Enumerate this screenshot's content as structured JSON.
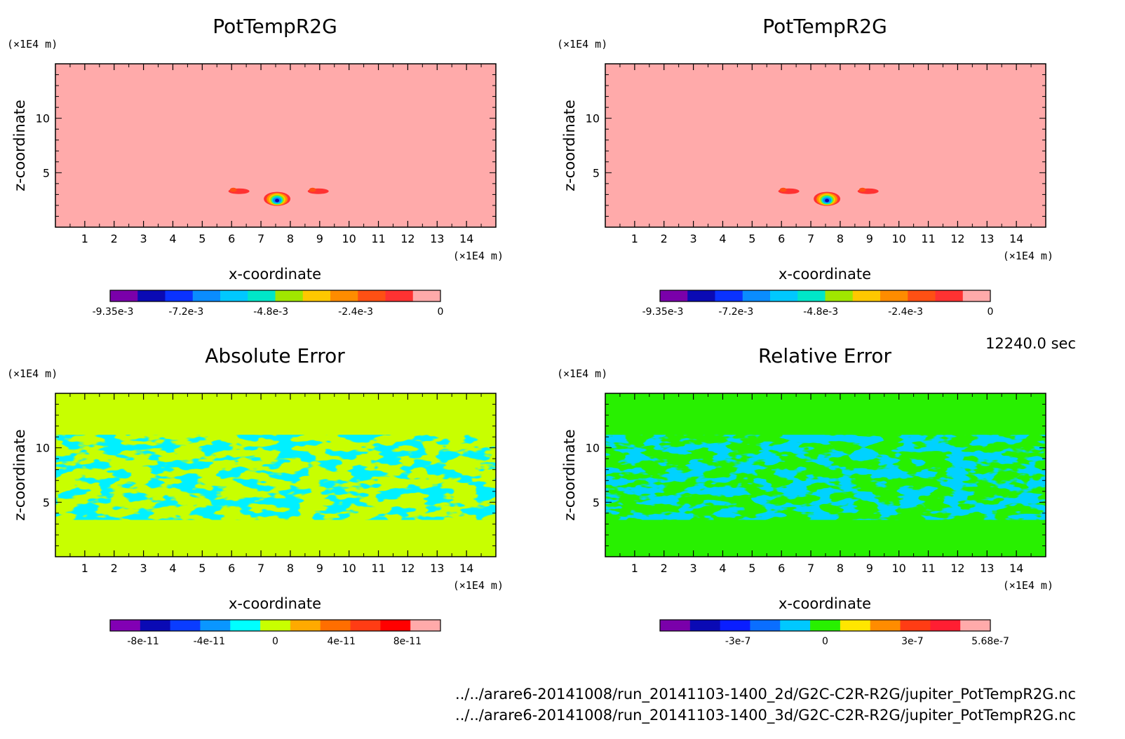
{
  "time_label": "12240.0 sec",
  "file_paths": [
    "../../arare6-20141008/run_20141103-1400_2d/G2C-C2R-R2G/jupiter_PotTempR2G.nc",
    "../../arare6-20141008/run_20141103-1400_3d/G2C-C2R-R2G/jupiter_PotTempR2G.nc"
  ],
  "chart_data": [
    {
      "type": "heatmap",
      "title": "PotTempR2G",
      "xlabel": "x-coordinate",
      "ylabel": "z-coordinate",
      "x_unit": "(×1E4 m)",
      "y_unit": "(×1E4 m)",
      "xlim": [
        0,
        15
      ],
      "ylim": [
        0,
        15
      ],
      "x_ticks": [
        1,
        2,
        3,
        4,
        5,
        6,
        7,
        8,
        9,
        10,
        11,
        12,
        13,
        14
      ],
      "y_ticks": [
        5,
        10
      ],
      "background_value": 0,
      "features": [
        {
          "kind": "anomaly",
          "x": 7.55,
          "z": 2.6,
          "min_value": -0.00935
        },
        {
          "kind": "patch",
          "x": 6.25,
          "z": 3.3,
          "value": -0.0024
        },
        {
          "kind": "patch",
          "x": 8.95,
          "z": 3.3,
          "value": -0.0024
        }
      ],
      "colorbar": {
        "colors": [
          "#7a00aa",
          "#0a0ab4",
          "#0a32ff",
          "#0a8cff",
          "#00c8ff",
          "#00e6c8",
          "#a0e600",
          "#ffc800",
          "#ff8c00",
          "#ff5014",
          "#ff3232",
          "#ffaaaa"
        ],
        "tick_labels": [
          "-9.35e-3",
          "-7.2e-3",
          "-4.8e-3",
          "-2.4e-3",
          "0"
        ],
        "tick_values": [
          -0.00935,
          -0.0072,
          -0.0048,
          -0.0024,
          0
        ],
        "range": [
          -0.00935,
          0
        ]
      }
    },
    {
      "type": "heatmap",
      "title": "PotTempR2G",
      "xlabel": "x-coordinate",
      "ylabel": "z-coordinate",
      "x_unit": "(×1E4 m)",
      "y_unit": "(×1E4 m)",
      "xlim": [
        0,
        15
      ],
      "ylim": [
        0,
        15
      ],
      "x_ticks": [
        1,
        2,
        3,
        4,
        5,
        6,
        7,
        8,
        9,
        10,
        11,
        12,
        13,
        14
      ],
      "y_ticks": [
        5,
        10
      ],
      "background_value": 0,
      "features": [
        {
          "kind": "anomaly",
          "x": 7.55,
          "z": 2.6,
          "min_value": -0.00935
        },
        {
          "kind": "patch",
          "x": 6.25,
          "z": 3.3,
          "value": -0.0024
        },
        {
          "kind": "patch",
          "x": 8.95,
          "z": 3.3,
          "value": -0.0024
        }
      ],
      "colorbar": {
        "colors": [
          "#7a00aa",
          "#0a0ab4",
          "#0a32ff",
          "#0a8cff",
          "#00c8ff",
          "#00e6c8",
          "#a0e600",
          "#ffc800",
          "#ff8c00",
          "#ff5014",
          "#ff3232",
          "#ffaaaa"
        ],
        "tick_labels": [
          "-9.35e-3",
          "-7.2e-3",
          "-4.8e-3",
          "-2.4e-3",
          "0"
        ],
        "tick_values": [
          -0.00935,
          -0.0072,
          -0.0048,
          -0.0024,
          0
        ],
        "range": [
          -0.00935,
          0
        ]
      }
    },
    {
      "type": "heatmap",
      "title": "Absolute Error",
      "xlabel": "x-coordinate",
      "ylabel": "z-coordinate",
      "x_unit": "(×1E4 m)",
      "y_unit": "(×1E4 m)",
      "xlim": [
        0,
        15
      ],
      "ylim": [
        0,
        15
      ],
      "x_ticks": [
        1,
        2,
        3,
        4,
        5,
        6,
        7,
        8,
        9,
        10,
        11,
        12,
        13,
        14
      ],
      "y_ticks": [
        5,
        10
      ],
      "background_color": "#c8ff00",
      "pattern_color": "#00f0ff",
      "pattern_z_range": [
        3.4,
        11.2
      ],
      "colorbar": {
        "colors": [
          "#8200b4",
          "#0a0ab4",
          "#0a3cff",
          "#0a96ff",
          "#00ffff",
          "#c8ff00",
          "#ffaa00",
          "#ff6e00",
          "#ff3c14",
          "#ff0000",
          "#ffaaaa"
        ],
        "tick_labels": [
          "-8e-11",
          "-4e-11",
          "0",
          "4e-11",
          "8e-11"
        ],
        "tick_values": [
          -8e-11,
          -4e-11,
          0,
          4e-11,
          8e-11
        ],
        "range": [
          -1e-10,
          1e-10
        ]
      }
    },
    {
      "type": "heatmap",
      "title": "Relative Error",
      "xlabel": "x-coordinate",
      "ylabel": "z-coordinate",
      "x_unit": "(×1E4 m)",
      "y_unit": "(×1E4 m)",
      "xlim": [
        0,
        15
      ],
      "ylim": [
        0,
        15
      ],
      "x_ticks": [
        1,
        2,
        3,
        4,
        5,
        6,
        7,
        8,
        9,
        10,
        11,
        12,
        13,
        14
      ],
      "y_ticks": [
        5,
        10
      ],
      "background_color": "#28f000",
      "pattern_color": "#00d2ff",
      "pattern_z_range": [
        3.4,
        11.2
      ],
      "colorbar": {
        "colors": [
          "#7a00aa",
          "#0a0ab4",
          "#0a1eff",
          "#0a6eff",
          "#00c8ff",
          "#28f000",
          "#ffe600",
          "#ff8c00",
          "#ff3c14",
          "#ff1e32",
          "#ffaaaa"
        ],
        "tick_labels": [
          "-3e-7",
          "0",
          "3e-7",
          "5.68e-7"
        ],
        "tick_values": [
          -3e-07,
          0,
          3e-07,
          5.68e-07
        ],
        "range": [
          -5.68e-07,
          5.68e-07
        ]
      }
    }
  ]
}
